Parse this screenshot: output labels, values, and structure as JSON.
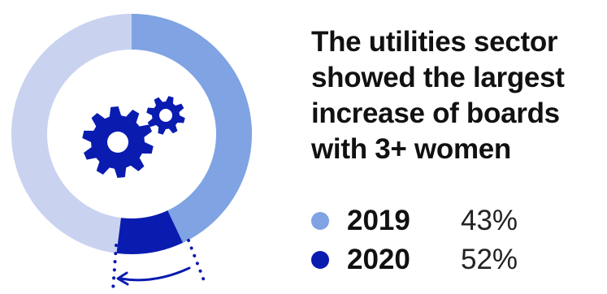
{
  "headline": {
    "lines": [
      "The utilities sector",
      "showed the largest",
      "increase of boards",
      "with 3+ women"
    ]
  },
  "colors": {
    "series_2019": "#7fa3e3",
    "series_2020": "#0a1bb0",
    "track_outer": "#c9d3f0",
    "track_inner": "#b7c7ee",
    "icon": "#0a1bb0"
  },
  "icon": {
    "name": "gears-icon"
  },
  "chart_data": {
    "type": "pie",
    "variant": "donut",
    "title": "The utilities sector showed the largest increase of boards with 3+ women",
    "unit": "%",
    "series": [
      {
        "name": "2019",
        "value": 43,
        "label": "43%"
      },
      {
        "name": "2020",
        "value": 52,
        "label": "52%"
      }
    ],
    "legend": "right"
  }
}
